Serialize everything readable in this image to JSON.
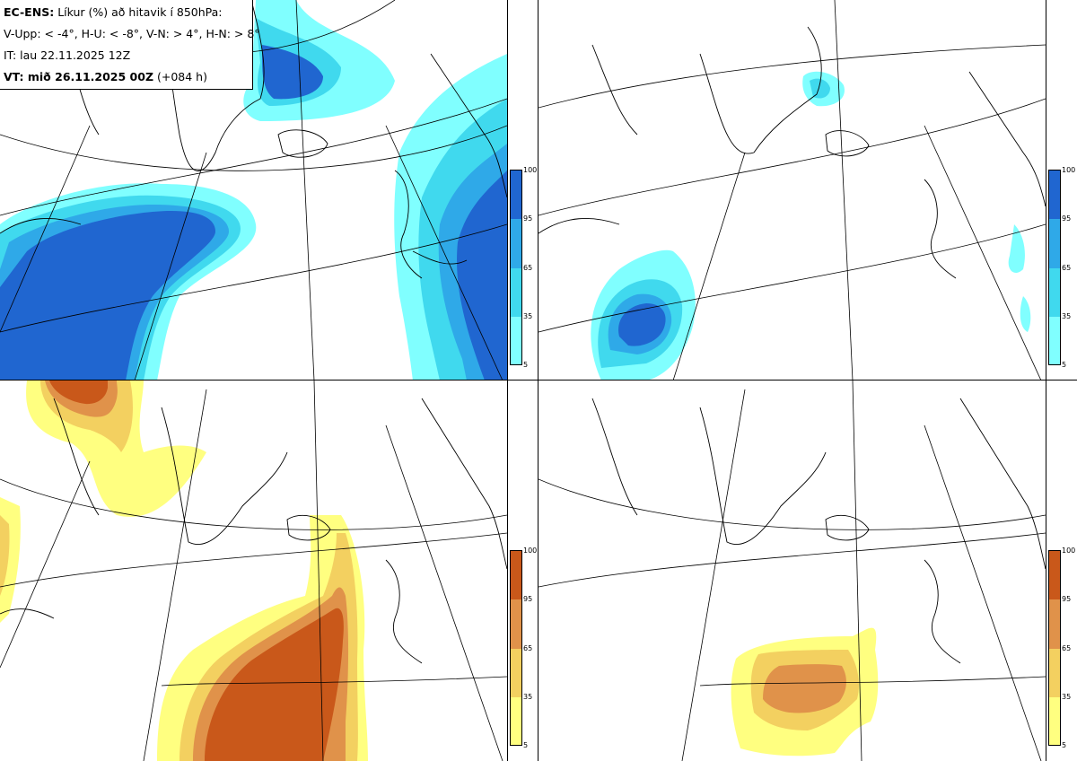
{
  "header": {
    "line1_bold": "EC-ENS:",
    "line1_rest": "Líkur (%) að hitavik í 850hPa:",
    "line2": "V-Upp: < -4°, H-U: < -8°, V-N: > 4°, H-N: > 8°",
    "line3": "IT: lau 22.11.2025 12Z",
    "line4_bold": "VT: mið 26.11.2025 00Z",
    "line4_rest": "(+084 h)"
  },
  "colorbar_cold": {
    "colors": [
      "#80ffff",
      "#40d9ee",
      "#2fa9e8",
      "#2066d0"
    ],
    "labels": [
      "100",
      "95",
      "65",
      "35",
      "5"
    ]
  },
  "colorbar_warm": {
    "colors": [
      "#ffff80",
      "#f3d060",
      "#e0924a",
      "#c9581a"
    ],
    "labels": [
      "100",
      "95",
      "65",
      "35",
      "5"
    ]
  },
  "panels": [
    {
      "name": "V-Upp",
      "description": "top-left"
    },
    {
      "name": "H-U",
      "description": "top-right"
    },
    {
      "name": "V-N",
      "description": "bottom-left"
    },
    {
      "name": "H-N",
      "description": "bottom-right"
    }
  ]
}
